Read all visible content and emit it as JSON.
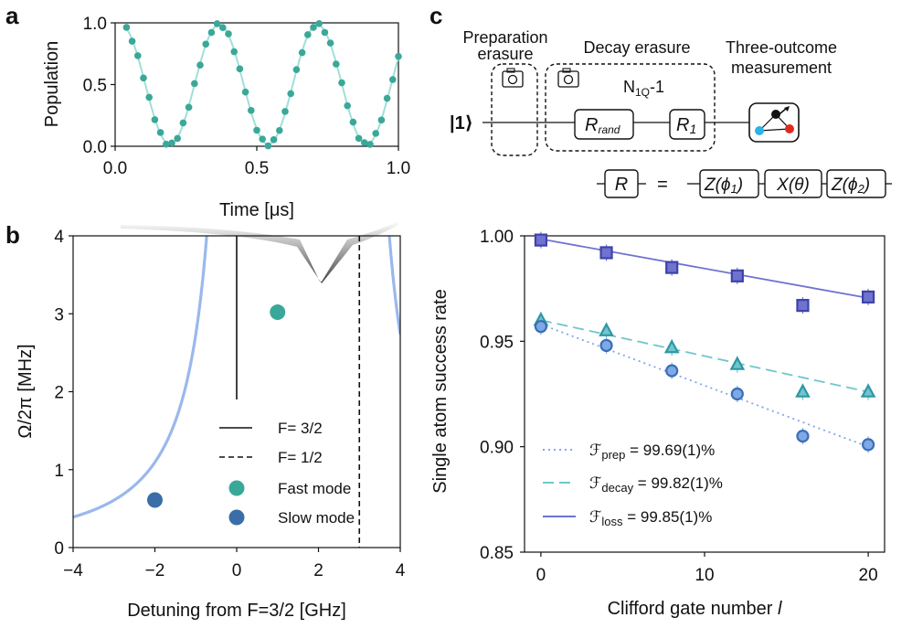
{
  "chart_data": [
    {
      "id": "a",
      "type": "scatter",
      "panel_label": "a",
      "title": "",
      "xlabel": "Time [μs]",
      "ylabel": "Population",
      "xlim": [
        0.0,
        1.0
      ],
      "ylim": [
        0.0,
        1.0
      ],
      "xticks": [
        "0.0",
        "0.5",
        "1.0"
      ],
      "yticks": [
        "0.0",
        "0.5",
        "1.0"
      ],
      "fit": {
        "function": "0.5 + 0.485*cos(2*pi*(t-0.02)/0.347)",
        "color": "#9fe0d8"
      },
      "points": {
        "color": "#3aa898",
        "x": [
          0.04,
          0.06,
          0.08,
          0.1,
          0.12,
          0.14,
          0.16,
          0.18,
          0.2,
          0.22,
          0.24,
          0.26,
          0.28,
          0.3,
          0.32,
          0.34,
          0.36,
          0.38,
          0.4,
          0.42,
          0.44,
          0.46,
          0.48,
          0.5,
          0.52,
          0.54,
          0.56,
          0.58,
          0.6,
          0.62,
          0.64,
          0.66,
          0.68,
          0.7,
          0.72,
          0.74,
          0.76,
          0.78,
          0.8,
          0.82,
          0.84,
          0.86,
          0.88,
          0.9,
          0.92,
          0.94,
          0.96,
          0.98,
          1.0
        ]
      }
    },
    {
      "id": "b",
      "type": "line",
      "panel_label": "b",
      "xlabel": "Detuning from F=3/2 [GHz]",
      "ylabel": "Ω/2π [MHz]",
      "xlim": [
        -4,
        4
      ],
      "ylim": [
        0,
        4
      ],
      "xticks": [
        "−4",
        "−2",
        "0",
        "2",
        "4"
      ],
      "yticks": [
        "0",
        "1",
        "2",
        "3",
        "4"
      ],
      "curve_color": "#9ab8ec",
      "vlines": [
        {
          "x": 0,
          "style": "solid",
          "label": "F= 3/2"
        },
        {
          "x": 3,
          "style": "dashed",
          "label": "F= 1/2"
        }
      ],
      "markers": [
        {
          "x": 1,
          "y": 3.02,
          "label": "Fast mode",
          "color": "#3aa898"
        },
        {
          "x": -2,
          "y": 0.61,
          "label": "Slow mode",
          "color": "#3b6ea8"
        }
      ],
      "legend": [
        "F= 3/2",
        "F= 1/2",
        "Fast mode",
        "Slow mode"
      ]
    },
    {
      "id": "c-plot",
      "type": "scatter",
      "panel_label": "c",
      "xlabel": "Clifford gate number ",
      "xlabel_var": "l",
      "ylabel": "Single atom success rate",
      "xlim": [
        -1,
        21
      ],
      "ylim": [
        0.85,
        1.0
      ],
      "xticks": [
        "0",
        "10",
        "20"
      ],
      "yticks": [
        "0.85",
        "0.90",
        "0.95",
        "1.00"
      ],
      "series": [
        {
          "name": "loss",
          "marker": "square",
          "color": "#6f73cf",
          "line": "solid",
          "x": [
            0,
            4,
            8,
            12,
            16,
            20
          ],
          "y": [
            0.998,
            0.992,
            0.985,
            0.981,
            0.967,
            0.971
          ],
          "fit": [
            0.9985,
            0.9705
          ]
        },
        {
          "name": "decay",
          "marker": "triangle",
          "color": "#6fc6cc",
          "line": "dashed",
          "x": [
            0,
            4,
            8,
            12,
            16,
            20
          ],
          "y": [
            0.96,
            0.955,
            0.947,
            0.939,
            0.926,
            0.926
          ],
          "fit": [
            0.96,
            0.926
          ]
        },
        {
          "name": "prep",
          "marker": "circle",
          "color": "#7ea8e6",
          "line": "dotted",
          "x": [
            0,
            4,
            8,
            12,
            16,
            20
          ],
          "y": [
            0.957,
            0.948,
            0.936,
            0.925,
            0.905,
            0.901
          ],
          "fit": [
            0.958,
            0.9
          ]
        }
      ],
      "legend": [
        {
          "sym": "ℱ",
          "sub": "prep",
          "value": " = 99.69(1)%"
        },
        {
          "sym": "ℱ",
          "sub": "decay",
          "value": " = 99.82(1)%"
        },
        {
          "sym": "ℱ",
          "sub": "loss",
          "value": " = 99.85(1)%"
        }
      ]
    }
  ],
  "circuit": {
    "panel_label": "c",
    "prep_erasure": "Preparation erasure",
    "prep_line1": "Preparation",
    "prep_line2": "erasure",
    "decay_erasure": "Decay erasure",
    "measure_line1": "Three-outcome",
    "measure_line2": "measurement",
    "input_state": "|1⟩",
    "repeat_base": "N",
    "repeat_sub": "1Q",
    "repeat_suffix": "-1",
    "gate_rand_base": "R",
    "gate_rand_sub": "rand",
    "gate_one_base": "R",
    "gate_one_sub": "1",
    "decomp_lhs": "R",
    "decomp_eq": "=",
    "decomp_gates": [
      "Z(ϕ",
      "X(θ)",
      "Z(ϕ"
    ],
    "decomp_subs": [
      "1",
      "",
      "2"
    ]
  },
  "colors": {
    "teal": "#3aa898",
    "slow": "#3b6ea8",
    "curve": "#9ab8ec"
  }
}
